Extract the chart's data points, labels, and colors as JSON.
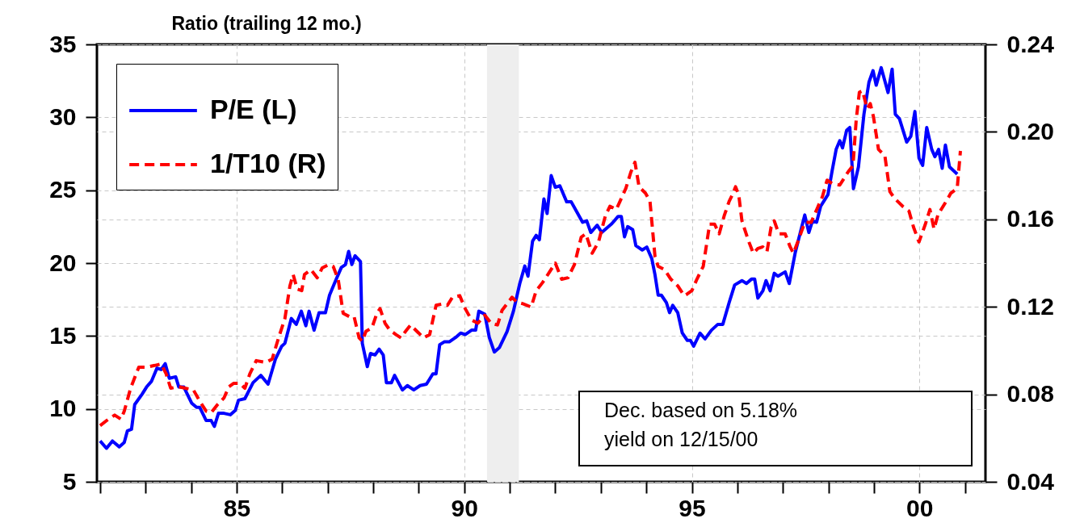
{
  "chart_data": {
    "type": "line",
    "ylabel": "Ratio (trailing 12 mo.)",
    "annotations": [
      "Dec. based on 5.18%\nyield on 12/15/00"
    ],
    "xlim": [
      1981.93,
      2001.45
    ],
    "xticks": [
      {
        "value": 1982,
        "label": null
      },
      {
        "value": 1983,
        "label": null
      },
      {
        "value": 1984,
        "label": null
      },
      {
        "value": 1985,
        "label": "85"
      },
      {
        "value": 1986,
        "label": null
      },
      {
        "value": 1987,
        "label": null
      },
      {
        "value": 1988,
        "label": null
      },
      {
        "value": 1989,
        "label": null
      },
      {
        "value": 1990,
        "label": "90"
      },
      {
        "value": 1991,
        "label": null
      },
      {
        "value": 1992,
        "label": null
      },
      {
        "value": 1993,
        "label": null
      },
      {
        "value": 1994,
        "label": null
      },
      {
        "value": 1995,
        "label": "95"
      },
      {
        "value": 1996,
        "label": null
      },
      {
        "value": 1997,
        "label": null
      },
      {
        "value": 1998,
        "label": null
      },
      {
        "value": 1999,
        "label": null
      },
      {
        "value": 2000,
        "label": "00"
      },
      {
        "value": 2001,
        "label": null
      }
    ],
    "ylim": [
      5,
      35
    ],
    "yticks": [
      5,
      10,
      15,
      20,
      25,
      30,
      35
    ],
    "y2lim": [
      0.04,
      0.24
    ],
    "y2ticks": [
      {
        "value": 0.04,
        "label": "0.04"
      },
      {
        "value": 0.08,
        "label": "0.08"
      },
      {
        "value": 0.12,
        "label": "0.12"
      },
      {
        "value": 0.16,
        "label": "0.16"
      },
      {
        "value": 0.2,
        "label": "0.20"
      },
      {
        "value": 0.24,
        "label": "0.24"
      }
    ],
    "grid": true,
    "legend": "top left",
    "bands": [
      {
        "axis": "x",
        "from": 1990.5,
        "to": 1991.2,
        "color": "#eeeeee"
      }
    ],
    "series": [
      {
        "name": "P/E (L)",
        "color": "#0000ff",
        "line_style": "solid",
        "x": [
          1982.0,
          1982.14,
          1982.27,
          1982.42,
          1982.53,
          1982.6,
          1982.69,
          1982.76,
          1982.92,
          1983.02,
          1983.13,
          1983.25,
          1983.34,
          1983.43,
          1983.52,
          1983.66,
          1983.73,
          1983.84,
          1984.01,
          1984.12,
          1984.19,
          1984.33,
          1984.44,
          1984.51,
          1984.6,
          1984.72,
          1984.86,
          1984.97,
          1985.04,
          1985.18,
          1985.36,
          1985.53,
          1985.69,
          1985.85,
          1985.99,
          1986.06,
          1986.2,
          1986.31,
          1986.42,
          1986.52,
          1986.59,
          1986.7,
          1986.81,
          1986.95,
          1987.04,
          1987.16,
          1987.3,
          1987.39,
          1987.46,
          1987.53,
          1987.6,
          1987.72,
          1987.76,
          1987.87,
          1987.94,
          1988.04,
          1988.13,
          1988.22,
          1988.29,
          1988.4,
          1988.47,
          1988.64,
          1988.75,
          1988.89,
          1989.03,
          1989.17,
          1989.31,
          1989.38,
          1989.46,
          1989.56,
          1989.67,
          1989.81,
          1989.92,
          1990.02,
          1990.16,
          1990.25,
          1990.32,
          1990.45,
          1990.55,
          1990.66,
          1990.77,
          1990.94,
          1991.08,
          1991.22,
          1991.33,
          1991.4,
          1991.5,
          1991.58,
          1991.65,
          1991.75,
          1991.82,
          1991.91,
          1992.0,
          1992.1,
          1992.25,
          1992.35,
          1992.6,
          1992.69,
          1992.78,
          1992.92,
          1993.02,
          1993.24,
          1993.38,
          1993.45,
          1993.52,
          1993.59,
          1993.7,
          1993.77,
          1993.91,
          1994.01,
          1994.12,
          1994.19,
          1994.26,
          1994.33,
          1994.44,
          1994.51,
          1994.58,
          1994.69,
          1994.79,
          1994.9,
          1994.97,
          1995.04,
          1995.18,
          1995.29,
          1995.43,
          1995.57,
          1995.68,
          1995.82,
          1995.94,
          1996.1,
          1996.2,
          1996.31,
          1996.38,
          1996.45,
          1996.56,
          1996.63,
          1996.72,
          1996.81,
          1996.89,
          1997.05,
          1997.14,
          1997.27,
          1997.48,
          1997.57,
          1997.65,
          1997.74,
          1997.83,
          1997.99,
          1998.08,
          1998.17,
          1998.25,
          1998.31,
          1998.4,
          1998.47,
          1998.55,
          1998.66,
          1998.78,
          1998.89,
          1998.98,
          1999.05,
          1999.16,
          1999.31,
          1999.4,
          1999.47,
          1999.56,
          1999.72,
          1999.81,
          1999.9,
          1999.99,
          2000.07,
          2000.16,
          2000.27,
          2000.34,
          2000.42,
          2000.5,
          2000.57,
          2000.66,
          2000.83
        ],
        "values": [
          7.8,
          7.3,
          7.8,
          7.4,
          7.7,
          8.5,
          8.6,
          10.3,
          11.0,
          11.5,
          11.9,
          12.8,
          12.7,
          13.1,
          12.1,
          12.2,
          11.5,
          11.5,
          10.4,
          10.1,
          10.1,
          9.2,
          9.2,
          8.8,
          9.7,
          9.7,
          9.6,
          9.9,
          10.6,
          10.7,
          11.8,
          12.3,
          11.7,
          13.4,
          14.3,
          14.5,
          16.2,
          15.8,
          16.7,
          15.7,
          16.7,
          15.4,
          16.6,
          16.6,
          17.8,
          18.7,
          19.7,
          19.9,
          20.8,
          19.9,
          20.5,
          20.1,
          14.5,
          12.9,
          13.8,
          13.7,
          14.1,
          13.7,
          11.8,
          11.8,
          12.3,
          11.3,
          11.6,
          11.3,
          11.6,
          11.7,
          12.4,
          12.4,
          14.4,
          14.6,
          14.6,
          14.9,
          15.2,
          15.1,
          15.4,
          15.4,
          16.7,
          16.5,
          14.9,
          13.9,
          14.2,
          15.3,
          16.7,
          18.6,
          19.8,
          19.1,
          21.5,
          21.9,
          21.6,
          24.4,
          23.4,
          26.0,
          25.2,
          25.3,
          24.2,
          24.2,
          22.8,
          22.9,
          22.1,
          22.6,
          22.1,
          22.7,
          23.2,
          23.2,
          21.8,
          22.5,
          22.3,
          21.2,
          20.9,
          21.1,
          20.3,
          19.2,
          17.8,
          17.8,
          17.3,
          16.6,
          17.1,
          16.6,
          15.2,
          14.7,
          14.7,
          14.3,
          15.2,
          14.8,
          15.4,
          15.8,
          15.8,
          17.3,
          18.5,
          18.8,
          18.6,
          18.9,
          18.9,
          17.6,
          18.1,
          18.8,
          18.1,
          19.3,
          19.1,
          19.4,
          18.6,
          20.7,
          23.3,
          22.1,
          22.9,
          22.8,
          23.9,
          24.7,
          26.3,
          27.8,
          28.4,
          27.9,
          29.1,
          29.3,
          25.1,
          26.6,
          30.2,
          32.4,
          33.2,
          32.2,
          33.4,
          31.7,
          33.3,
          30.2,
          29.9,
          28.3,
          28.7,
          30.4,
          27.2,
          26.7,
          29.3,
          27.8,
          27.3,
          27.8,
          26.5,
          28.1,
          26.6,
          26.1
        ]
      },
      {
        "name": "1/T10 (R)",
        "color": "#ff0000",
        "line_style": "dashed",
        "axis": "y2",
        "x": [
          1982.0,
          1982.18,
          1982.32,
          1982.46,
          1982.53,
          1982.67,
          1982.85,
          1983.02,
          1983.2,
          1983.34,
          1983.45,
          1983.55,
          1983.73,
          1983.87,
          1984.05,
          1984.19,
          1984.33,
          1984.44,
          1984.58,
          1984.72,
          1984.83,
          1984.93,
          1985.07,
          1985.18,
          1985.29,
          1985.43,
          1985.64,
          1985.78,
          1985.92,
          1986.06,
          1986.17,
          1986.24,
          1986.33,
          1986.43,
          1986.49,
          1986.63,
          1986.77,
          1986.88,
          1987.02,
          1987.12,
          1987.23,
          1987.34,
          1987.48,
          1987.58,
          1987.69,
          1987.76,
          1987.84,
          1987.97,
          1988.08,
          1988.15,
          1988.26,
          1988.36,
          1988.5,
          1988.61,
          1988.71,
          1988.82,
          1989.0,
          1989.1,
          1989.24,
          1989.38,
          1989.53,
          1989.63,
          1989.74,
          1989.9,
          1990.02,
          1990.16,
          1990.3,
          1990.45,
          1990.59,
          1990.73,
          1990.83,
          1991.05,
          1991.15,
          1991.29,
          1991.47,
          1991.58,
          1991.72,
          1991.86,
          1992.0,
          1992.14,
          1992.28,
          1992.42,
          1992.57,
          1992.67,
          1992.81,
          1992.95,
          1993.1,
          1993.2,
          1993.34,
          1993.55,
          1993.66,
          1993.75,
          1993.84,
          1993.98,
          1994.08,
          1994.19,
          1994.26,
          1994.4,
          1994.54,
          1994.69,
          1994.83,
          1994.9,
          1995.0,
          1995.11,
          1995.25,
          1995.39,
          1995.5,
          1995.6,
          1995.71,
          1995.82,
          1995.89,
          1995.96,
          1996.03,
          1996.1,
          1996.24,
          1996.35,
          1996.45,
          1996.56,
          1996.65,
          1996.74,
          1996.81,
          1996.91,
          1997.05,
          1997.16,
          1997.23,
          1997.34,
          1997.48,
          1997.62,
          1997.76,
          1997.87,
          1997.97,
          1998.08,
          1998.25,
          1998.43,
          1998.54,
          1998.61,
          1998.68,
          1998.75,
          1998.85,
          1998.92,
          1998.99,
          1999.1,
          1999.24,
          1999.35,
          1999.45,
          1999.63,
          1999.77,
          1999.87,
          1999.99,
          2000.13,
          2000.23,
          2000.32,
          2000.41,
          2000.59,
          2000.69,
          2000.83,
          2000.9
        ],
        "values": [
          0.0657,
          0.0686,
          0.0705,
          0.0686,
          0.0723,
          0.0828,
          0.0924,
          0.0924,
          0.0932,
          0.0939,
          0.0894,
          0.0828,
          0.0835,
          0.0828,
          0.082,
          0.0768,
          0.0723,
          0.0716,
          0.0753,
          0.0783,
          0.0835,
          0.085,
          0.085,
          0.0828,
          0.0894,
          0.0954,
          0.0946,
          0.0961,
          0.1058,
          0.1147,
          0.1296,
          0.1348,
          0.1281,
          0.1274,
          0.1348,
          0.137,
          0.1333,
          0.1378,
          0.1393,
          0.1385,
          0.1326,
          0.117,
          0.1155,
          0.1155,
          0.1058,
          0.1043,
          0.1088,
          0.1103,
          0.117,
          0.1192,
          0.1125,
          0.1095,
          0.1073,
          0.1058,
          0.1088,
          0.1117,
          0.108,
          0.1058,
          0.1073,
          0.1207,
          0.1214,
          0.1207,
          0.1244,
          0.1251,
          0.1192,
          0.114,
          0.1125,
          0.1162,
          0.1125,
          0.1117,
          0.1184,
          0.1244,
          0.1222,
          0.1214,
          0.1199,
          0.1274,
          0.1311,
          0.1355,
          0.14,
          0.1326,
          0.1333,
          0.1393,
          0.1519,
          0.1534,
          0.1445,
          0.1497,
          0.1616,
          0.166,
          0.1645,
          0.1742,
          0.1816,
          0.1861,
          0.1749,
          0.172,
          0.1683,
          0.143,
          0.1385,
          0.137,
          0.1326,
          0.1296,
          0.1251,
          0.1259,
          0.1274,
          0.1326,
          0.1385,
          0.1578,
          0.1578,
          0.1534,
          0.1616,
          0.1683,
          0.1712,
          0.1749,
          0.1712,
          0.1593,
          0.1504,
          0.1445,
          0.1467,
          0.1474,
          0.1452,
          0.1564,
          0.1593,
          0.1534,
          0.1534,
          0.1474,
          0.1445,
          0.1504,
          0.1586,
          0.1586,
          0.1653,
          0.1705,
          0.1779,
          0.1764,
          0.1757,
          0.1816,
          0.1846,
          0.2054,
          0.2181,
          0.2188,
          0.2106,
          0.2129,
          0.2069,
          0.192,
          0.1891,
          0.1727,
          0.1697,
          0.166,
          0.1638,
          0.1564,
          0.1497,
          0.1578,
          0.1645,
          0.1556,
          0.1623,
          0.1683,
          0.172,
          0.1742,
          0.1913
        ]
      }
    ]
  }
}
